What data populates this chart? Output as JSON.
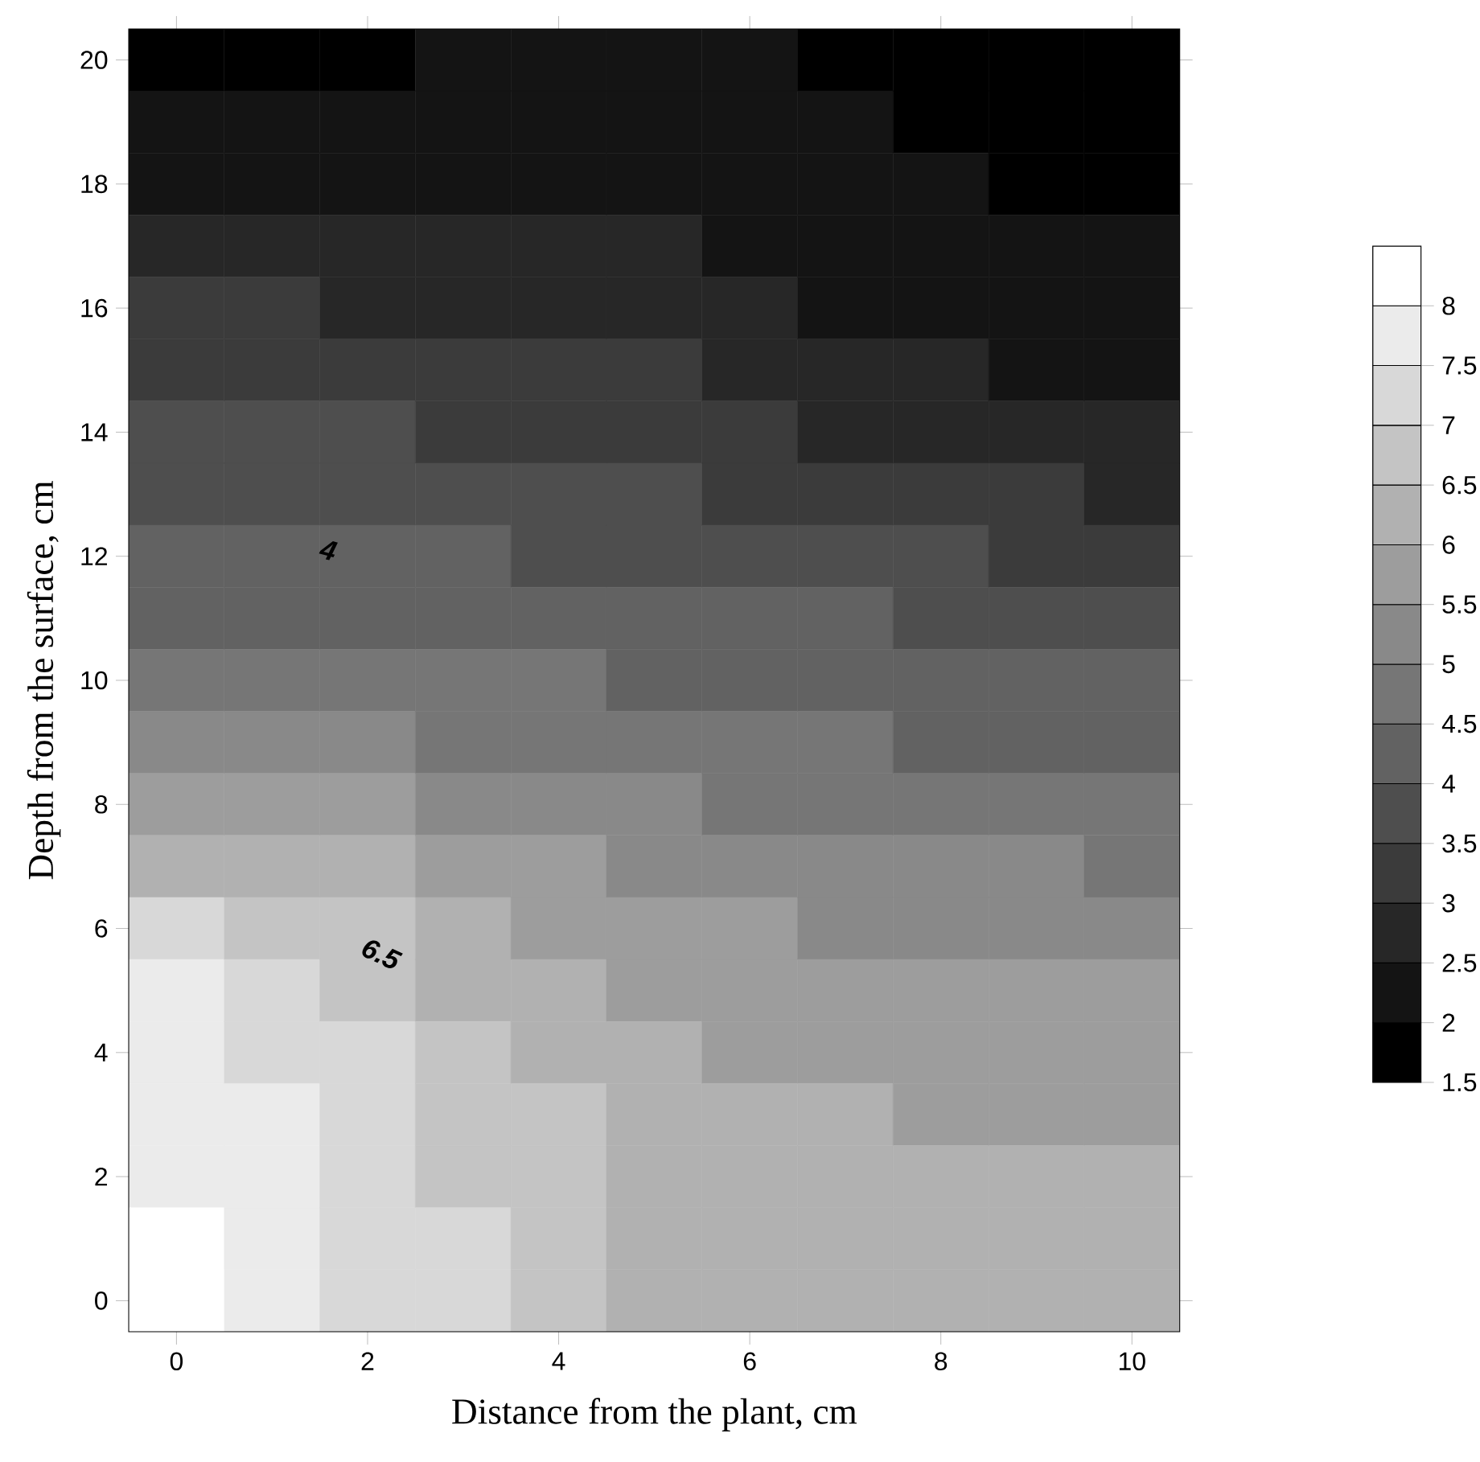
{
  "chart_data": {
    "type": "heatmap",
    "xlabel": "Distance from the plant, cm",
    "ylabel": "Depth from the surface, cm",
    "categories": [
      "0",
      null,
      "2",
      null,
      "4",
      null,
      "6",
      null,
      "8",
      null,
      "10"
    ],
    "y_categories": [
      "20",
      null,
      "18",
      null,
      "16",
      null,
      "14",
      null,
      "12",
      null,
      "10",
      null,
      "8",
      null,
      "6",
      null,
      "4",
      null,
      "2",
      null,
      "0"
    ],
    "clim": [
      1.5,
      8.5
    ],
    "cticks": [
      1.5,
      2,
      2.5,
      3,
      3.5,
      4,
      4.5,
      5,
      5.5,
      6,
      6.5,
      7,
      7.5,
      8
    ],
    "colors": [
      "#000000",
      "#ffffff"
    ],
    "cells": [
      [
        1.85,
        1.93,
        1.99,
        2.05,
        2.1,
        2.05,
        2.0,
        1.85,
        1.7,
        1.62,
        1.52
      ],
      [
        2.17,
        2.2,
        2.21,
        2.2,
        2.25,
        2.2,
        2.14,
        2.0,
        1.87,
        1.78,
        1.68
      ],
      [
        2.48,
        2.46,
        2.44,
        2.41,
        2.42,
        2.35,
        2.28,
        2.15,
        2.03,
        1.94,
        1.85
      ],
      [
        2.8,
        2.74,
        2.69,
        2.65,
        2.61,
        2.5,
        2.42,
        2.31,
        2.2,
        2.11,
        2.02
      ],
      [
        3.11,
        3.03,
        2.96,
        2.9,
        2.85,
        2.76,
        2.61,
        2.46,
        2.37,
        2.28,
        2.2
      ],
      [
        3.41,
        3.33,
        3.25,
        3.17,
        3.1,
        3.03,
        2.86,
        2.7,
        2.56,
        2.46,
        2.38
      ],
      [
        3.68,
        3.61,
        3.53,
        3.45,
        3.37,
        3.29,
        3.14,
        2.96,
        2.86,
        2.75,
        2.62
      ],
      [
        3.94,
        3.87,
        3.8,
        3.72,
        3.64,
        3.56,
        3.45,
        3.33,
        3.21,
        3.09,
        2.99
      ],
      [
        4.21,
        4.15,
        4.08,
        4.0,
        3.93,
        3.86,
        3.77,
        3.68,
        3.58,
        3.46,
        3.35
      ],
      [
        4.48,
        4.44,
        4.39,
        4.32,
        4.24,
        4.16,
        4.07,
        4.0,
        3.91,
        3.82,
        3.72
      ],
      [
        4.82,
        4.77,
        4.72,
        4.65,
        4.56,
        4.47,
        4.37,
        4.28,
        4.2,
        4.13,
        4.06
      ],
      [
        5.28,
        5.18,
        5.09,
        4.97,
        4.85,
        4.75,
        4.65,
        4.56,
        4.49,
        4.42,
        4.34
      ],
      [
        5.86,
        5.72,
        5.58,
        5.43,
        5.23,
        5.04,
        4.93,
        4.84,
        4.77,
        4.71,
        4.63
      ],
      [
        6.45,
        6.23,
        6.01,
        5.77,
        5.6,
        5.46,
        5.27,
        5.14,
        5.06,
        5.0,
        4.94
      ],
      [
        7.04,
        6.76,
        6.5,
        6.09,
        5.86,
        5.7,
        5.57,
        5.45,
        5.34,
        5.29,
        5.24
      ],
      [
        7.53,
        7.16,
        6.84,
        6.42,
        6.1,
        5.93,
        5.77,
        5.66,
        5.59,
        5.55,
        5.52
      ],
      [
        7.66,
        7.44,
        7.08,
        6.61,
        6.32,
        6.08,
        5.97,
        5.86,
        5.78,
        5.75,
        5.72
      ],
      [
        7.78,
        7.62,
        7.2,
        6.76,
        6.52,
        6.2,
        6.08,
        6.04,
        5.97,
        5.94,
        5.92
      ],
      [
        7.91,
        7.73,
        7.3,
        6.91,
        6.58,
        6.3,
        6.18,
        6.13,
        6.08,
        6.05,
        6.04
      ],
      [
        8.05,
        7.8,
        7.4,
        7.06,
        6.6,
        6.35,
        6.25,
        6.2,
        6.15,
        6.13,
        6.12
      ],
      [
        8.2,
        7.85,
        7.48,
        7.2,
        6.6,
        6.4,
        6.3,
        6.25,
        6.2,
        6.2,
        6.2
      ]
    ],
    "annotations": [
      "4",
      "6.5"
    ]
  }
}
